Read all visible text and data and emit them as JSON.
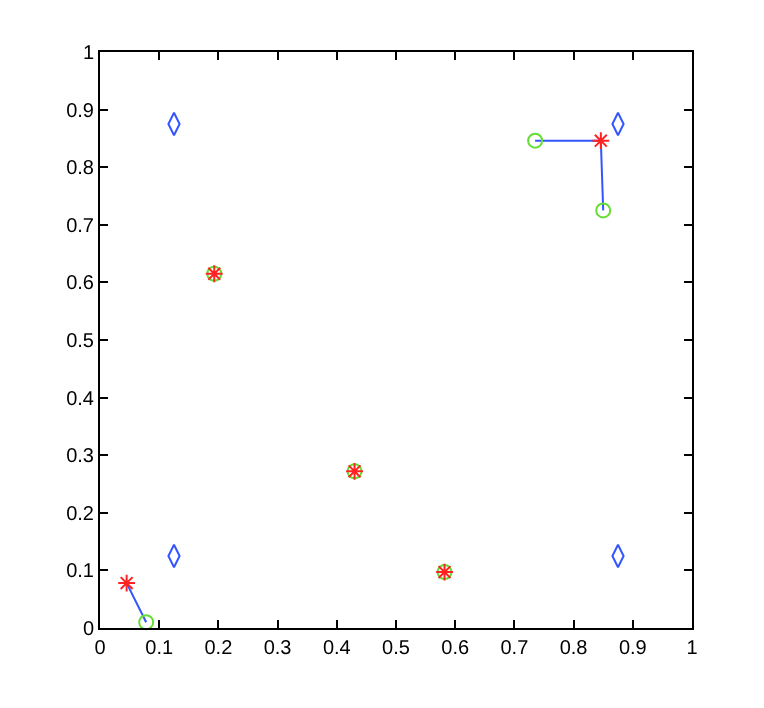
{
  "chart_data": {
    "type": "scatter",
    "xlim": [
      0,
      1
    ],
    "ylim": [
      0,
      1
    ],
    "xticks": [
      0,
      0.1,
      0.2,
      0.3,
      0.4,
      0.5,
      0.6,
      0.7,
      0.8,
      0.9,
      1
    ],
    "yticks": [
      0,
      0.1,
      0.2,
      0.3,
      0.4,
      0.5,
      0.6,
      0.7,
      0.8,
      0.9,
      1
    ],
    "grid": false,
    "series": [
      {
        "type": "line",
        "color": "#3355ff",
        "marker": "none",
        "line_style": "solid",
        "x": [
          0.045,
          0.078,
          null,
          0.735,
          0.846,
          0.85
        ],
        "values": [
          0.078,
          0.01,
          null,
          0.846,
          0.846,
          0.725
        ]
      },
      {
        "color": "#3355ff",
        "marker": "diamond",
        "x": [
          0.125,
          0.875,
          0.125,
          0.875
        ],
        "values": [
          0.875,
          0.875,
          0.125,
          0.125
        ]
      },
      {
        "color": "#66dd33",
        "marker": "circle",
        "x": [
          0.193,
          0.43,
          0.582,
          0.078,
          0.735,
          0.85
        ],
        "values": [
          0.615,
          0.272,
          0.097,
          0.01,
          0.846,
          0.725
        ]
      },
      {
        "color": "#ff2222",
        "marker": "cross",
        "x": [
          0.193,
          0.43,
          0.582,
          0.045,
          0.846
        ],
        "values": [
          0.615,
          0.272,
          0.097,
          0.078,
          0.846
        ]
      }
    ]
  }
}
